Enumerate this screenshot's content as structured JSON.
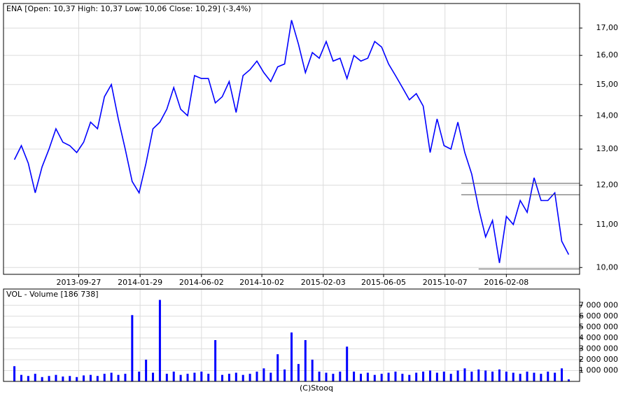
{
  "chart_data": [
    {
      "type": "line",
      "title": "ENA [Open: 10,37  High: 10,37  Low: 10,06  Close: 10,29] (-3,4%)",
      "color": "#0000ff",
      "log_scale": true,
      "grid": true,
      "x": [
        "2013-05-20",
        "2013-06-03",
        "2013-06-17",
        "2013-07-01",
        "2013-07-15",
        "2013-07-29",
        "2013-08-12",
        "2013-08-26",
        "2013-09-09",
        "2013-09-23",
        "2013-10-07",
        "2013-10-21",
        "2013-11-04",
        "2013-11-18",
        "2013-12-02",
        "2013-12-16",
        "2013-12-30",
        "2014-01-13",
        "2014-01-27",
        "2014-02-10",
        "2014-02-24",
        "2014-03-10",
        "2014-03-24",
        "2014-04-07",
        "2014-04-21",
        "2014-05-05",
        "2014-05-19",
        "2014-06-02",
        "2014-06-16",
        "2014-06-30",
        "2014-07-14",
        "2014-07-28",
        "2014-08-11",
        "2014-08-25",
        "2014-09-08",
        "2014-09-22",
        "2014-10-06",
        "2014-10-20",
        "2014-11-03",
        "2014-11-17",
        "2014-12-01",
        "2014-12-15",
        "2014-12-29",
        "2015-01-12",
        "2015-01-26",
        "2015-02-09",
        "2015-02-23",
        "2015-03-09",
        "2015-03-23",
        "2015-04-06",
        "2015-04-20",
        "2015-05-04",
        "2015-05-18",
        "2015-06-01",
        "2015-06-15",
        "2015-06-29",
        "2015-07-13",
        "2015-07-27",
        "2015-08-10",
        "2015-08-24",
        "2015-09-07",
        "2015-09-21",
        "2015-10-05",
        "2015-10-19",
        "2015-11-02",
        "2015-11-16",
        "2015-11-30",
        "2015-12-14",
        "2015-12-28",
        "2016-01-11",
        "2016-01-25",
        "2016-02-08",
        "2016-02-22",
        "2016-03-07",
        "2016-03-21",
        "2016-04-04",
        "2016-04-18",
        "2016-05-02",
        "2016-05-16",
        "2016-05-30",
        "2016-06-13"
      ],
      "values": [
        12.7,
        13.1,
        12.6,
        11.8,
        12.5,
        13.0,
        13.6,
        13.2,
        13.1,
        12.9,
        13.2,
        13.8,
        13.6,
        14.6,
        15.0,
        13.9,
        13.0,
        12.1,
        11.8,
        12.6,
        13.6,
        13.8,
        14.2,
        14.9,
        14.2,
        14.0,
        15.3,
        15.2,
        15.2,
        14.4,
        14.6,
        15.1,
        14.1,
        15.3,
        15.5,
        15.8,
        15.4,
        15.1,
        15.6,
        15.7,
        17.3,
        16.4,
        15.4,
        16.1,
        15.9,
        16.5,
        15.8,
        15.9,
        15.2,
        16.0,
        15.8,
        15.9,
        16.5,
        16.3,
        15.7,
        15.3,
        14.9,
        14.5,
        14.7,
        14.3,
        12.9,
        13.9,
        13.1,
        13.0,
        13.8,
        12.9,
        12.3,
        11.4,
        10.7,
        11.1,
        10.1,
        11.2,
        11.0,
        11.6,
        11.3,
        12.2,
        11.6,
        11.6,
        11.8,
        10.6,
        10.29
      ],
      "xlim": [
        "2013-04-28",
        "2016-07-05"
      ],
      "xticks": [
        "2013-09-27",
        "2014-01-29",
        "2014-06-02",
        "2014-10-02",
        "2015-02-03",
        "2015-06-05",
        "2015-10-07",
        "2016-02-08"
      ],
      "ylim": [
        9.85,
        17.95
      ],
      "yticks": [
        {
          "value": 10,
          "label": "10,00"
        },
        {
          "value": 11,
          "label": "11,00"
        },
        {
          "value": 12,
          "label": "12,00"
        },
        {
          "value": 13,
          "label": "13,00"
        },
        {
          "value": 14,
          "label": "14,00"
        },
        {
          "value": 15,
          "label": "15,00"
        },
        {
          "value": 16,
          "label": "16,00"
        },
        {
          "value": 17,
          "label": "17,00"
        }
      ],
      "levels": [
        {
          "value": 12.05,
          "start": "2015-11-09"
        },
        {
          "value": 11.75,
          "start": "2015-11-09"
        },
        {
          "value": 9.97,
          "start": "2015-12-14"
        }
      ]
    },
    {
      "type": "bar",
      "title": "VOL - Volume [186 738]",
      "color": "#0000ff",
      "grid": true,
      "values": [
        1400000,
        600000,
        500000,
        700000,
        400000,
        500000,
        600000,
        450000,
        500000,
        400000,
        550000,
        600000,
        500000,
        700000,
        800000,
        600000,
        700000,
        6100000,
        900000,
        2000000,
        800000,
        7500000,
        700000,
        900000,
        600000,
        700000,
        800000,
        900000,
        700000,
        3800000,
        600000,
        700000,
        800000,
        600000,
        700000,
        900000,
        1200000,
        800000,
        2500000,
        1100000,
        4500000,
        1600000,
        3800000,
        2000000,
        900000,
        800000,
        700000,
        900000,
        3200000,
        900000,
        700000,
        800000,
        600000,
        700000,
        800000,
        900000,
        700000,
        600000,
        800000,
        900000,
        1000000,
        800000,
        900000,
        700000,
        1000000,
        1200000,
        900000,
        1100000,
        1000000,
        900000,
        1100000,
        900000,
        800000,
        700000,
        900000,
        800000,
        700000,
        900000,
        800000,
        1200000,
        186738
      ],
      "ylim": [
        0,
        8500000
      ],
      "yticks": [
        {
          "value": 1000000,
          "label": "1 000 000"
        },
        {
          "value": 2000000,
          "label": "2 000 000"
        },
        {
          "value": 3000000,
          "label": "3 000 000"
        },
        {
          "value": 4000000,
          "label": "4 000 000"
        },
        {
          "value": 5000000,
          "label": "5 000 000"
        },
        {
          "value": 6000000,
          "label": "6 000 000"
        },
        {
          "value": 7000000,
          "label": "7 000 000"
        }
      ]
    }
  ],
  "footer": "(C)Stooq"
}
